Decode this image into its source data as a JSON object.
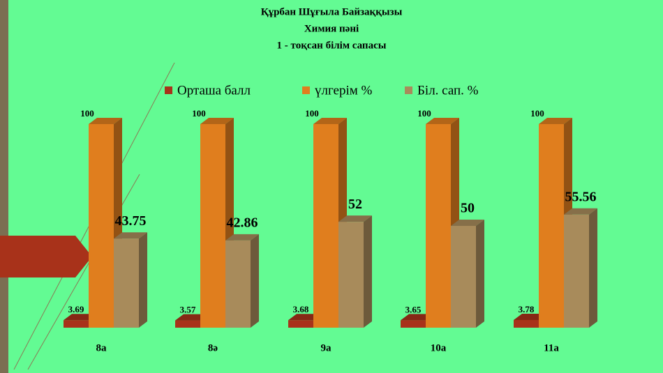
{
  "chart_data": {
    "type": "bar3d",
    "title": [
      "Құрбан Шұғыла Байзаққызы",
      "Химия   пәні",
      "1 - тоқсан  білім сапасы"
    ],
    "categories": [
      "8а",
      "8ә",
      "9а",
      "10а",
      "11а"
    ],
    "series": [
      {
        "name": "Орташа балл",
        "color": "#a8321a",
        "values": [
          3.69,
          3.57,
          3.68,
          3.65,
          3.78
        ]
      },
      {
        "name": "үлгерім %",
        "color": "#e07e1e",
        "values": [
          100,
          100,
          100,
          100,
          100
        ]
      },
      {
        "name": "Біл. сап. %",
        "color": "#a88b5b",
        "values": [
          43.75,
          42.86,
          52,
          50,
          55.56
        ]
      }
    ]
  }
}
